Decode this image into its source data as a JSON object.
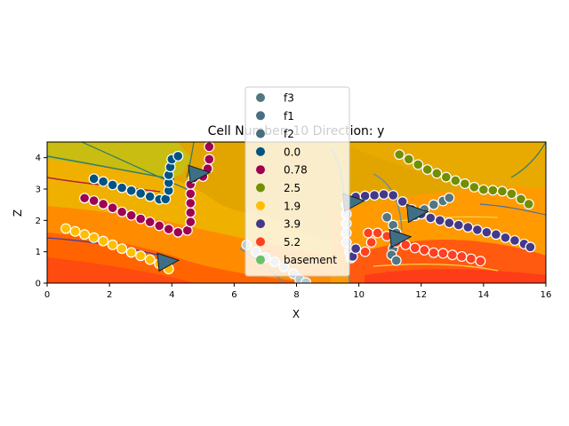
{
  "chart_data": {
    "type": "scatter",
    "title": "Cell Number: 10 Direction: y",
    "xlabel": "X",
    "ylabel": "Z",
    "xlim": [
      0,
      16
    ],
    "ylim": [
      0,
      4.5
    ],
    "xticks": [
      0,
      2,
      4,
      6,
      8,
      10,
      12,
      14,
      16
    ],
    "yticks": [
      0,
      1,
      2,
      3,
      4
    ],
    "legend": {
      "placement": "upper-center",
      "entries": [
        {
          "label": "f3",
          "color": "#527682"
        },
        {
          "label": "f1",
          "color": "#4a6f80"
        },
        {
          "label": "f2",
          "color": "#476e7f"
        },
        {
          "label": "0.0",
          "color": "#015482"
        },
        {
          "label": "0.78",
          "color": "#9f0052"
        },
        {
          "label": "2.5",
          "color": "#728f02"
        },
        {
          "label": "1.9",
          "color": "#ffbe00"
        },
        {
          "label": "3.9",
          "color": "#443988"
        },
        {
          "label": "5.2",
          "color": "#ff3f20"
        },
        {
          "label": "basement",
          "color": "#6ac16a"
        }
      ]
    },
    "series": [
      {
        "name": "0.0",
        "color": "#015482",
        "points": [
          [
            1.5,
            3.33
          ],
          [
            1.8,
            3.24
          ],
          [
            2.1,
            3.13
          ],
          [
            2.4,
            3.04
          ],
          [
            2.7,
            2.95
          ],
          [
            3.0,
            2.86
          ],
          [
            3.3,
            2.76
          ],
          [
            3.6,
            2.67
          ],
          [
            3.8,
            2.68
          ],
          [
            3.9,
            2.95
          ],
          [
            3.9,
            3.2
          ],
          [
            3.9,
            3.45
          ],
          [
            3.95,
            3.7
          ],
          [
            4.0,
            3.95
          ],
          [
            4.2,
            4.05
          ]
        ]
      },
      {
        "name": "0.78",
        "color": "#9f0052",
        "points": [
          [
            1.2,
            2.71
          ],
          [
            1.5,
            2.63
          ],
          [
            1.8,
            2.52
          ],
          [
            2.1,
            2.4
          ],
          [
            2.4,
            2.27
          ],
          [
            2.7,
            2.16
          ],
          [
            3.0,
            2.05
          ],
          [
            3.3,
            1.95
          ],
          [
            3.6,
            1.83
          ],
          [
            3.9,
            1.72
          ],
          [
            4.2,
            1.62
          ],
          [
            4.5,
            1.68
          ],
          [
            4.6,
            1.95
          ],
          [
            4.6,
            2.25
          ],
          [
            4.6,
            2.55
          ],
          [
            4.6,
            2.85
          ],
          [
            4.6,
            3.15
          ],
          [
            4.7,
            3.35
          ],
          [
            5.0,
            3.4
          ],
          [
            5.15,
            3.65
          ],
          [
            5.2,
            3.95
          ],
          [
            5.2,
            4.35
          ]
        ]
      },
      {
        "name": "1.9",
        "color": "#ffbe00",
        "points": [
          [
            0.6,
            1.74
          ],
          [
            0.9,
            1.65
          ],
          [
            1.2,
            1.55
          ],
          [
            1.5,
            1.45
          ],
          [
            1.8,
            1.34
          ],
          [
            2.1,
            1.22
          ],
          [
            2.4,
            1.1
          ],
          [
            2.7,
            0.98
          ],
          [
            3.0,
            0.87
          ],
          [
            3.3,
            0.75
          ],
          [
            3.6,
            0.62
          ],
          [
            3.9,
            0.45
          ]
        ]
      },
      {
        "name": "f1",
        "color": "#b8c8d0",
        "points": [
          [
            6.4,
            1.22
          ],
          [
            6.7,
            1.0
          ],
          [
            7.0,
            0.82
          ],
          [
            7.3,
            0.68
          ],
          [
            7.6,
            0.52
          ],
          [
            7.9,
            0.3
          ],
          [
            8.1,
            0.12
          ],
          [
            8.3,
            0.02
          ]
        ]
      },
      {
        "name": "f2",
        "color": "#c8d4e0",
        "points": [
          [
            9.6,
            2.5
          ],
          [
            9.6,
            2.2
          ],
          [
            9.6,
            1.9
          ],
          [
            9.6,
            1.6
          ],
          [
            9.6,
            1.3
          ],
          [
            9.7,
            1.0
          ],
          [
            9.75,
            0.8
          ]
        ]
      },
      {
        "name": "f3",
        "color": "#527682",
        "points": [
          [
            10.9,
            2.1
          ],
          [
            11.1,
            1.85
          ],
          [
            11.2,
            1.6
          ],
          [
            11.2,
            1.35
          ],
          [
            11.1,
            1.1
          ],
          [
            11.05,
            0.9
          ],
          [
            11.2,
            0.72
          ],
          [
            11.8,
            2.15
          ],
          [
            12.1,
            2.35
          ],
          [
            12.4,
            2.5
          ],
          [
            12.7,
            2.62
          ],
          [
            12.9,
            2.72
          ]
        ]
      },
      {
        "name": "3.9",
        "color": "#443988",
        "points": [
          [
            9.9,
            2.75
          ],
          [
            10.2,
            2.78
          ],
          [
            10.5,
            2.8
          ],
          [
            10.8,
            2.83
          ],
          [
            11.1,
            2.8
          ],
          [
            11.4,
            2.6
          ],
          [
            11.7,
            2.35
          ],
          [
            12.0,
            2.2
          ],
          [
            12.3,
            2.08
          ],
          [
            12.6,
            2.0
          ],
          [
            12.9,
            1.92
          ],
          [
            13.2,
            1.85
          ],
          [
            13.5,
            1.78
          ],
          [
            13.8,
            1.7
          ],
          [
            14.1,
            1.62
          ],
          [
            14.4,
            1.55
          ],
          [
            14.7,
            1.45
          ],
          [
            15.0,
            1.36
          ],
          [
            15.3,
            1.25
          ],
          [
            15.5,
            1.15
          ],
          [
            9.8,
            0.85
          ],
          [
            9.9,
            1.1
          ]
        ]
      },
      {
        "name": "5.2",
        "color": "#ff3f20",
        "points": [
          [
            10.3,
            1.6
          ],
          [
            10.6,
            1.6
          ],
          [
            10.9,
            1.5
          ],
          [
            11.2,
            1.3
          ],
          [
            11.5,
            1.22
          ],
          [
            11.8,
            1.12
          ],
          [
            12.1,
            1.05
          ],
          [
            12.4,
            0.97
          ],
          [
            12.7,
            0.95
          ],
          [
            13.0,
            0.9
          ],
          [
            13.3,
            0.85
          ],
          [
            13.6,
            0.78
          ],
          [
            13.9,
            0.7
          ],
          [
            10.4,
            1.3
          ],
          [
            10.2,
            1.0
          ]
        ]
      },
      {
        "name": "2.5",
        "color": "#728f02",
        "points": [
          [
            11.3,
            4.1
          ],
          [
            11.6,
            3.95
          ],
          [
            11.9,
            3.78
          ],
          [
            12.2,
            3.62
          ],
          [
            12.5,
            3.5
          ],
          [
            12.8,
            3.38
          ],
          [
            13.1,
            3.27
          ],
          [
            13.4,
            3.17
          ],
          [
            13.7,
            3.06
          ],
          [
            14.0,
            2.98
          ],
          [
            14.3,
            2.96
          ],
          [
            14.6,
            2.93
          ],
          [
            14.9,
            2.85
          ],
          [
            15.2,
            2.68
          ],
          [
            15.45,
            2.52
          ]
        ]
      }
    ],
    "arrows": [
      {
        "x": 4.85,
        "y": 3.5
      },
      {
        "x": 3.85,
        "y": 0.7
      },
      {
        "x": 9.8,
        "y": 2.6
      },
      {
        "x": 11.85,
        "y": 2.25
      },
      {
        "x": 11.3,
        "y": 1.45
      }
    ]
  }
}
